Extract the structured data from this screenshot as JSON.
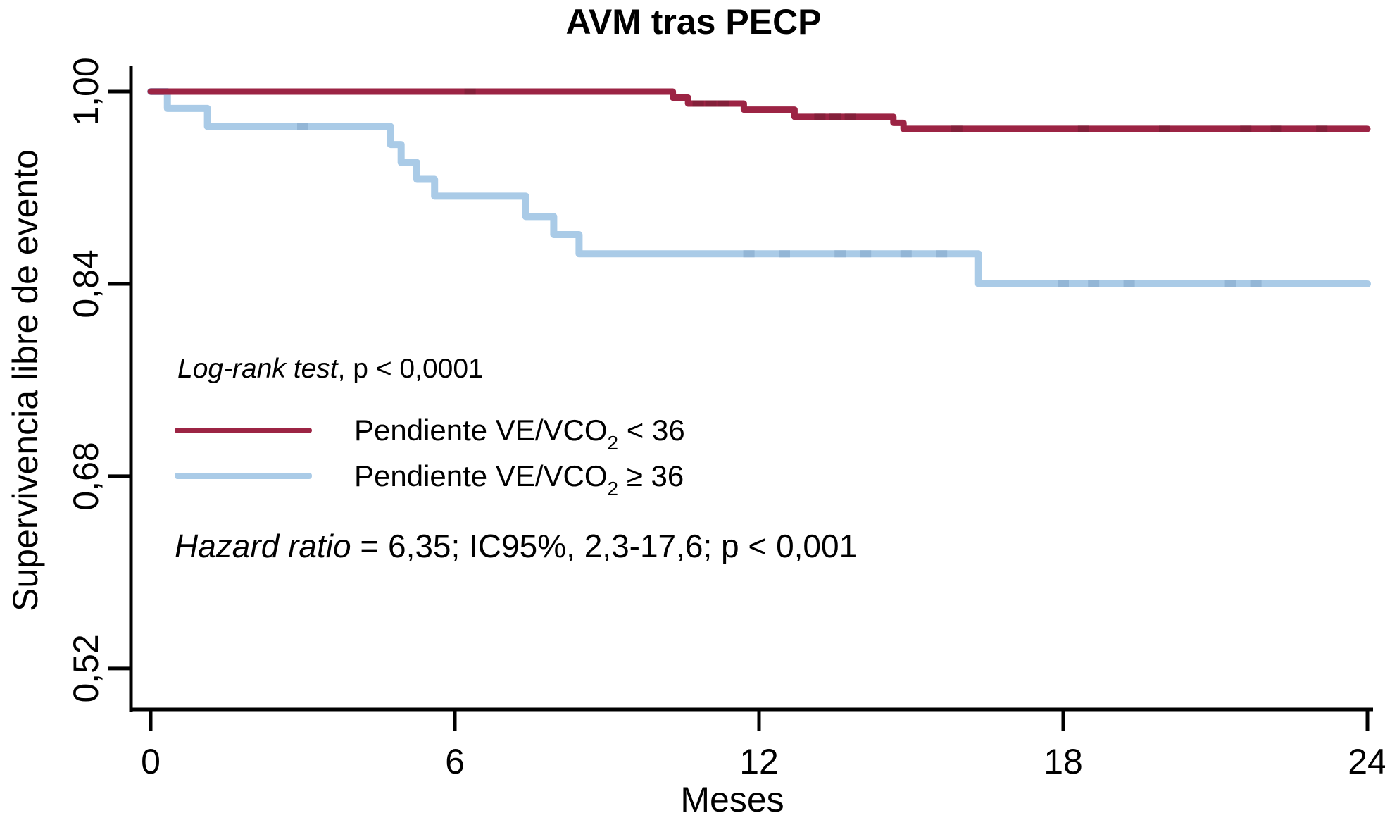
{
  "chart_data": {
    "type": "line",
    "subtype": "kaplan-meier-step-curves",
    "title": "AVM tras PECP",
    "xlabel": "Meses",
    "ylabel": "Supervivencia libre de evento",
    "xlim": [
      0,
      24
    ],
    "ylim": [
      0.486,
      1.022
    ],
    "grid": false,
    "legend_position": "inside-left-middle",
    "xticks": [
      {
        "value": 0,
        "label": "0"
      },
      {
        "value": 6,
        "label": "6"
      },
      {
        "value": 12,
        "label": "12"
      },
      {
        "value": 18,
        "label": "18"
      },
      {
        "value": 24,
        "label": "24"
      }
    ],
    "yticks": [
      {
        "value": 1.0,
        "label": "1,00"
      },
      {
        "value": 0.84,
        "label": "0,84"
      },
      {
        "value": 0.68,
        "label": "0,68"
      },
      {
        "value": 0.52,
        "label": "0,52"
      }
    ],
    "series": [
      {
        "id": "vevco2-lt36",
        "name": "Pendiente VE/VCO2 < 36",
        "color": "#9c2444",
        "censor_color": "#84203a",
        "line_width": 9,
        "steps": [
          [
            0,
            1.0
          ],
          [
            10.3,
            0.995
          ],
          [
            10.6,
            0.99
          ],
          [
            11.7,
            0.985
          ],
          [
            12.7,
            0.979
          ],
          [
            14.65,
            0.974
          ],
          [
            14.85,
            0.969
          ]
        ],
        "end_month": 24,
        "end_value": 0.969,
        "censor_months": [
          6.3,
          10.8,
          11.05,
          11.3,
          13.2,
          13.5,
          13.8,
          15.9,
          18.4,
          20.0,
          21.6,
          22.2,
          23.1
        ]
      },
      {
        "id": "vevco2-ge36",
        "name": "Pendiente VE/VCO2 ≥ 36",
        "color": "#aacbe7",
        "censor_color": "#93b6d6",
        "line_width": 10,
        "steps": [
          [
            0,
            1.0
          ],
          [
            0.33,
            0.986
          ],
          [
            1.12,
            0.971
          ],
          [
            4.73,
            0.956
          ],
          [
            4.94,
            0.941
          ],
          [
            5.25,
            0.927
          ],
          [
            5.6,
            0.913
          ],
          [
            7.4,
            0.896
          ],
          [
            7.95,
            0.881
          ],
          [
            8.45,
            0.865
          ],
          [
            16.33,
            0.84
          ]
        ],
        "end_month": 24,
        "end_value": 0.84,
        "censor_months": [
          3.0,
          11.8,
          12.5,
          13.6,
          14.1,
          14.9,
          15.6,
          18.0,
          18.6,
          19.3,
          21.3,
          21.8
        ]
      }
    ]
  },
  "legend": {
    "items": [
      {
        "pre": "Pendiente VE/VCO",
        "sub": "2",
        "post": " < 36"
      },
      {
        "pre": "Pendiente VE/VCO",
        "sub": "2",
        "post": " ≥ 36"
      }
    ]
  },
  "annotations": {
    "logrank_italic": "Log-rank test",
    "logrank_rest": ", p < 0,0001",
    "hazard_italic": "Hazard ratio",
    "hazard_rest": " = 6,35; IC95%, 2,3-17,6; p < 0,001"
  }
}
